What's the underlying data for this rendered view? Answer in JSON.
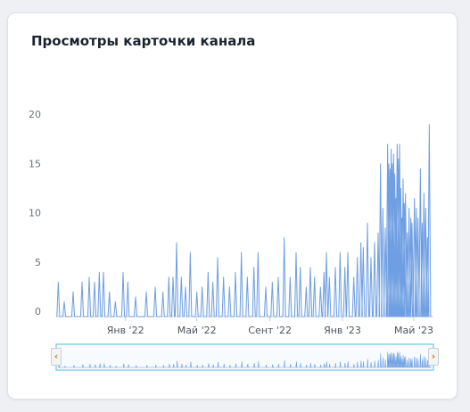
{
  "card": {
    "title": "Просмотры карточки канала"
  },
  "colors": {
    "line": "#6f9fe2",
    "fill": "#a9c8f0",
    "navigator_border": "#8bd2e6",
    "arrow": "#d97706"
  },
  "navigator": {
    "left_arrow_icon": "chevron-left-icon",
    "right_arrow_icon": "chevron-right-icon",
    "left_arrow": "‹",
    "right_arrow": "›"
  },
  "chart_data": {
    "type": "area",
    "title": "Просмотры карточки канала",
    "xlabel": "",
    "ylabel": "",
    "ylim": [
      0,
      22
    ],
    "y_ticks": [
      0,
      5,
      10,
      15,
      20
    ],
    "x_range": [
      "2021-09-08",
      "2023-05-31"
    ],
    "x_ticks": [
      {
        "date": "2022-01-01",
        "label": "Янв '22"
      },
      {
        "date": "2022-05-01",
        "label": "Май '22"
      },
      {
        "date": "2022-09-01",
        "label": "Сент '22"
      },
      {
        "date": "2023-01-01",
        "label": "Янв '23"
      },
      {
        "date": "2023-05-01",
        "label": "Май '23"
      }
    ],
    "grid": false,
    "legend": "none",
    "spikes": [
      [
        "2021-09-10",
        3.5
      ],
      [
        "2021-09-20",
        1.5
      ],
      [
        "2021-10-05",
        2.5
      ],
      [
        "2021-10-20",
        3.5
      ],
      [
        "2021-11-01",
        4
      ],
      [
        "2021-11-10",
        3.5
      ],
      [
        "2021-11-18",
        4.5
      ],
      [
        "2021-11-25",
        4.5
      ],
      [
        "2021-12-05",
        2.5
      ],
      [
        "2021-12-15",
        1.5
      ],
      [
        "2021-12-28",
        4.5
      ],
      [
        "2022-01-05",
        3.5
      ],
      [
        "2022-01-18",
        2
      ],
      [
        "2022-02-05",
        2.5
      ],
      [
        "2022-02-20",
        3
      ],
      [
        "2022-03-05",
        2.5
      ],
      [
        "2022-03-15",
        4
      ],
      [
        "2022-03-22",
        4
      ],
      [
        "2022-03-28",
        7.5
      ],
      [
        "2022-04-05",
        4
      ],
      [
        "2022-04-12",
        3
      ],
      [
        "2022-04-20",
        6.5
      ],
      [
        "2022-05-01",
        2.5
      ],
      [
        "2022-05-10",
        3
      ],
      [
        "2022-05-20",
        4.5
      ],
      [
        "2022-05-28",
        3.5
      ],
      [
        "2022-06-05",
        6
      ],
      [
        "2022-06-15",
        4
      ],
      [
        "2022-06-25",
        3
      ],
      [
        "2022-07-05",
        4.5
      ],
      [
        "2022-07-15",
        6.5
      ],
      [
        "2022-07-25",
        4
      ],
      [
        "2022-08-05",
        5
      ],
      [
        "2022-08-12",
        6.5
      ],
      [
        "2022-08-25",
        3
      ],
      [
        "2022-09-05",
        3.5
      ],
      [
        "2022-09-15",
        4
      ],
      [
        "2022-09-25",
        8
      ],
      [
        "2022-10-05",
        4
      ],
      [
        "2022-10-15",
        6.5
      ],
      [
        "2022-10-22",
        5
      ],
      [
        "2022-11-01",
        3
      ],
      [
        "2022-11-08",
        5
      ],
      [
        "2022-11-15",
        4
      ],
      [
        "2022-11-25",
        3
      ],
      [
        "2022-12-01",
        4.5
      ],
      [
        "2022-12-05",
        6.5
      ],
      [
        "2022-12-10",
        4
      ],
      [
        "2022-12-20",
        5
      ],
      [
        "2022-12-28",
        6.5
      ],
      [
        "2023-01-05",
        5
      ],
      [
        "2023-01-10",
        6.5
      ],
      [
        "2023-01-20",
        4
      ],
      [
        "2023-01-26",
        6
      ],
      [
        "2023-02-01",
        7.5
      ],
      [
        "2023-02-05",
        7
      ],
      [
        "2023-02-12",
        9.5
      ],
      [
        "2023-02-18",
        6
      ],
      [
        "2023-02-24",
        7.5
      ],
      [
        "2023-03-02",
        8.5
      ],
      [
        "2023-03-06",
        15.5
      ],
      [
        "2023-03-10",
        11
      ],
      [
        "2023-03-14",
        9
      ],
      [
        "2023-03-18",
        17.5
      ],
      [
        "2023-03-20",
        15.5
      ],
      [
        "2023-03-22",
        15
      ],
      [
        "2023-03-24",
        17
      ],
      [
        "2023-03-26",
        15.5
      ],
      [
        "2023-03-28",
        16.5
      ],
      [
        "2023-03-30",
        14.5
      ],
      [
        "2023-04-01",
        12
      ],
      [
        "2023-04-03",
        17.5
      ],
      [
        "2023-04-05",
        16
      ],
      [
        "2023-04-07",
        17.5
      ],
      [
        "2023-04-09",
        13
      ],
      [
        "2023-04-11",
        10
      ],
      [
        "2023-04-13",
        14
      ],
      [
        "2023-04-15",
        11.5
      ],
      [
        "2023-04-17",
        12.5
      ],
      [
        "2023-04-20",
        8.5
      ],
      [
        "2023-04-23",
        11
      ],
      [
        "2023-04-26",
        10
      ],
      [
        "2023-04-28",
        9.5
      ],
      [
        "2023-05-02",
        12
      ],
      [
        "2023-05-05",
        11
      ],
      [
        "2023-05-08",
        10
      ],
      [
        "2023-05-12",
        15
      ],
      [
        "2023-05-15",
        9.5
      ],
      [
        "2023-05-18",
        12.5
      ],
      [
        "2023-05-21",
        11
      ],
      [
        "2023-05-24",
        8
      ],
      [
        "2023-05-27",
        19.5
      ]
    ]
  }
}
